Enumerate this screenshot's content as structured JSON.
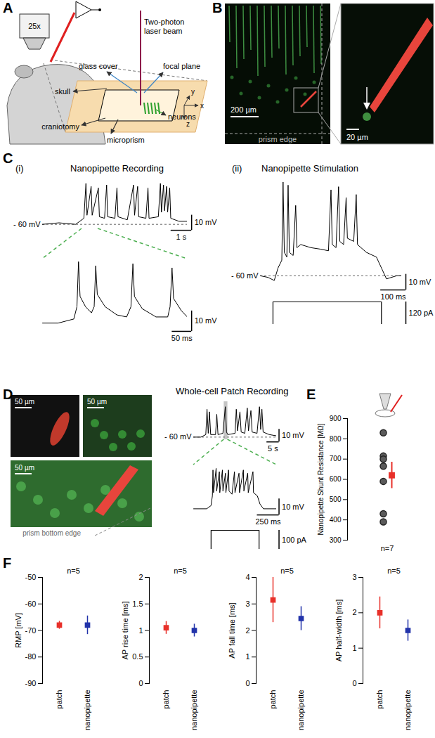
{
  "figure": {
    "A": {
      "panel": "A",
      "objective": "25x",
      "laser": [
        "Two-photon",
        "laser beam"
      ],
      "labels": {
        "glass": "glass cover",
        "focal": "focal plane",
        "skull": "skull",
        "craniotomy": "craniotomy",
        "neurons": "neurons",
        "prism": "microprism"
      },
      "axes": [
        "x",
        "y",
        "z"
      ]
    },
    "B": {
      "panel": "B",
      "scale_left": "200 µm",
      "edge": "prism edge",
      "scale_right": "20 µm"
    },
    "D": {
      "scales": [
        "50 µm",
        "50 µm",
        "50 µm"
      ],
      "edge": "prism bottom edge"
    }
  },
  "chart_data": [
    {
      "type": "line",
      "panel": "C",
      "label": "(i)",
      "title": "Nanopipette Recording",
      "color": "#000000",
      "x": [
        0,
        0.8,
        1.6,
        2.0,
        2.1,
        2.15,
        2.35,
        2.4,
        2.7,
        2.75,
        3.0,
        3.1,
        3.15,
        3.5,
        3.6,
        3.65,
        4.1,
        4.4,
        4.45,
        4.6,
        4.65,
        5.0,
        5.1,
        5.15,
        5.6,
        5.7,
        5.75,
        5.85,
        5.9,
        6.0,
        6.05,
        6.15,
        6.2,
        6.6,
        7.0
      ],
      "values": [
        -60,
        -59,
        -60,
        -56,
        -33,
        -54,
        -35,
        -54,
        -36,
        -55,
        -56,
        -34,
        -55,
        -56,
        -36,
        -55,
        -57,
        -34,
        -54,
        -35,
        -55,
        -56,
        -36,
        -56,
        -55,
        -33,
        -52,
        -34,
        -51,
        -35,
        -52,
        -36,
        -56,
        -58,
        -58
      ],
      "xlim": [
        0,
        7
      ],
      "ylim": [
        -62,
        -30
      ],
      "tick_labels": false,
      "baseline": {
        "value": -60,
        "label": "- 60 mV"
      },
      "scale_bars": {
        "x": {
          "value": 1,
          "label": "1 s"
        },
        "y": {
          "value": 10,
          "label": "10 mV"
        }
      }
    },
    {
      "type": "line",
      "color": "#000000",
      "x": [
        0,
        40,
        80,
        88,
        92,
        96,
        110,
        125,
        132,
        136,
        140,
        160,
        190,
        215,
        226,
        231,
        235,
        255,
        290,
        320,
        326,
        331,
        335,
        355,
        370
      ],
      "values": [
        -58,
        -58,
        -56,
        -50,
        -28,
        -45,
        -50,
        -53,
        -50,
        -30,
        -44,
        -50,
        -54,
        -55,
        -50,
        -29,
        -45,
        -51,
        -55,
        -55,
        -50,
        -31,
        -46,
        -52,
        -55
      ],
      "xlim": [
        0,
        370
      ],
      "ylim": [
        -60,
        -26
      ],
      "tick_labels": false,
      "scale_bars": {
        "x": {
          "value": 50,
          "label": "50 ms"
        },
        "y": {
          "value": 10,
          "label": "10 mV"
        }
      }
    },
    {
      "type": "line",
      "label": "(ii)",
      "title": "Nanopipette Stimulation",
      "color": "#000000",
      "x": [
        0,
        30,
        55,
        70,
        85,
        90,
        95,
        105,
        110,
        115,
        130,
        140,
        145,
        160,
        200,
        240,
        270,
        280,
        285,
        300,
        310,
        315,
        330,
        340,
        345,
        370,
        380,
        385,
        420,
        460,
        480,
        500,
        540,
        560
      ],
      "values": [
        -60,
        -61,
        -63,
        -55,
        -50,
        0,
        -45,
        -48,
        -2,
        -45,
        -47,
        -15,
        -42,
        -40,
        -42,
        -43,
        -44,
        -5,
        -40,
        -42,
        -3,
        -38,
        -40,
        -10,
        -36,
        -38,
        -8,
        -40,
        -45,
        -48,
        -55,
        -62,
        -60,
        -60
      ],
      "xlim": [
        0,
        560
      ],
      "ylim": [
        -65,
        2
      ],
      "tick_labels": false,
      "baseline": {
        "value": -60,
        "label": "- 60 mV"
      },
      "scale_bars": {
        "x": {
          "value": 100,
          "label": "100 ms"
        },
        "y": {
          "value": 10,
          "label": "10 mV"
        }
      },
      "stimulus": {
        "x": [
          0,
          50,
          50,
          480,
          480,
          560
        ],
        "values": [
          0,
          0,
          120,
          120,
          0,
          0
        ],
        "scale_bar": {
          "value": 120,
          "label": "120 pA"
        }
      }
    },
    {
      "type": "line",
      "panel": "D",
      "title": "Whole-cell Patch Recording",
      "color": "#000000",
      "x": [
        0,
        3,
        5,
        5.5,
        6,
        6.5,
        7,
        9,
        9.5,
        10,
        12,
        13,
        13.5,
        14,
        17,
        17.5,
        18,
        19,
        19.5,
        21,
        22,
        22.5,
        23.5,
        24,
        26,
        27,
        27.5,
        28,
        28.5,
        31,
        34
      ],
      "values": [
        -60,
        -60,
        -58,
        -38,
        -57,
        -40,
        -58,
        -58,
        -42,
        -58,
        -57,
        -36,
        -56,
        -58,
        -57,
        -38,
        -55,
        -40,
        -56,
        -57,
        -37,
        -55,
        -39,
        -56,
        -57,
        -36,
        -54,
        -38,
        -56,
        -58,
        -59
      ],
      "xlim": [
        0,
        34
      ],
      "ylim": [
        -62,
        -32
      ],
      "tick_labels": false,
      "baseline": {
        "value": -60,
        "label": "- 60 mV"
      },
      "highlight": [
        12.5,
        14
      ],
      "scale_bars": {
        "x": {
          "value": 5,
          "label": "5 s"
        },
        "y": {
          "value": 10,
          "label": "10 mV"
        }
      }
    },
    {
      "type": "line",
      "color": "#000000",
      "x": [
        0,
        150,
        200,
        215,
        222,
        228,
        258,
        264,
        295,
        300,
        330,
        336,
        365,
        370,
        400,
        406,
        440,
        468,
        474,
        520,
        526,
        570,
        576,
        620,
        626,
        680,
        686,
        730,
        760,
        800,
        950
      ],
      "values": [
        -60,
        -60,
        -58,
        -52,
        -36,
        -50,
        -35,
        -49,
        -37,
        -50,
        -36,
        -49,
        -38,
        -50,
        -36,
        -49,
        -51,
        -37,
        -50,
        -38,
        -50,
        -36,
        -49,
        -38,
        -50,
        -37,
        -50,
        -52,
        -57,
        -60,
        -60
      ],
      "xlim": [
        0,
        950
      ],
      "ylim": [
        -62,
        -32
      ],
      "tick_labels": false,
      "scale_bars": {
        "x": {
          "value": 250,
          "label": "250 ms"
        },
        "y": {
          "value": 10,
          "label": "10 mV"
        }
      },
      "stimulus": {
        "x": [
          0,
          200,
          200,
          750,
          750,
          950
        ],
        "values": [
          0,
          0,
          100,
          100,
          0,
          0
        ],
        "scale_bar": {
          "value": 100,
          "label": "100 pA"
        }
      }
    },
    {
      "type": "scatter",
      "panel": "E",
      "ylabel": "Nanopipette Shunt Resistance [MΩ]",
      "values": [
        830,
        715,
        700,
        665,
        590,
        430,
        390
      ],
      "color": "#5a5a5a",
      "marker": "circle",
      "mean": {
        "value": 620,
        "error": [
          555,
          685
        ],
        "color": "#e8302a",
        "marker": "square"
      },
      "ylim": [
        300,
        900
      ],
      "yticks": [
        300,
        400,
        500,
        600,
        700,
        800,
        900
      ],
      "tick_labels": "y",
      "annotation": "n=7"
    },
    {
      "type": "scatter",
      "panel": "F",
      "annotation": "n=5",
      "ylabel": "RMP [mV]",
      "categories": [
        "patch",
        "nanopipette"
      ],
      "values": [
        -68,
        -68
      ],
      "errors": [
        [
          -69.5,
          -66.5
        ],
        [
          -71.5,
          -64.5
        ]
      ],
      "colors": [
        "#e8302a",
        "#2233aa"
      ],
      "marker": "square",
      "ylim": [
        -90,
        -50
      ],
      "yticks": [
        -90,
        -80,
        -70,
        -60,
        -50
      ]
    },
    {
      "type": "scatter",
      "annotation": "n=5",
      "ylabel": "AP rise time [ms]",
      "categories": [
        "patch",
        "nanopipette"
      ],
      "values": [
        1.05,
        1.0
      ],
      "errors": [
        [
          0.93,
          1.17
        ],
        [
          0.88,
          1.12
        ]
      ],
      "colors": [
        "#e8302a",
        "#2233aa"
      ],
      "marker": "square",
      "ylim": [
        0,
        2
      ],
      "yticks": [
        0,
        0.5,
        1,
        1.5,
        2
      ]
    },
    {
      "type": "scatter",
      "annotation": "n=5",
      "ylabel": "AP fall time [ms]",
      "categories": [
        "patch",
        "nanopipette"
      ],
      "values": [
        3.15,
        2.45
      ],
      "errors": [
        [
          2.3,
          4.0
        ],
        [
          2.0,
          2.9
        ]
      ],
      "colors": [
        "#e8302a",
        "#2233aa"
      ],
      "marker": "square",
      "ylim": [
        0,
        4
      ],
      "yticks": [
        0,
        1,
        2,
        3,
        4
      ]
    },
    {
      "type": "scatter",
      "annotation": "n=5",
      "ylabel": "AP half-width [ms]",
      "categories": [
        "patch",
        "nanopipette"
      ],
      "values": [
        2.0,
        1.5
      ],
      "errors": [
        [
          1.55,
          2.45
        ],
        [
          1.2,
          1.8
        ]
      ],
      "colors": [
        "#e8302a",
        "#2233aa"
      ],
      "marker": "square",
      "ylim": [
        0,
        3
      ],
      "yticks": [
        0,
        1,
        2,
        3
      ]
    }
  ]
}
